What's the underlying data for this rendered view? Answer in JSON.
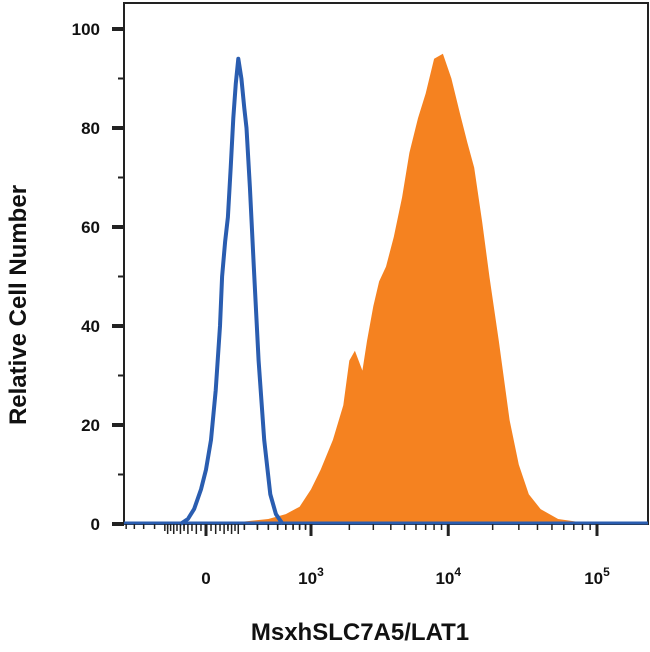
{
  "chart_data": {
    "type": "area",
    "xlabel": "MsxhSLC7A5/LAT1",
    "ylabel": "Relative Cell Number",
    "ylim": [
      0,
      100
    ],
    "y_ticks": [
      "0",
      "20",
      "40",
      "60",
      "80",
      "100"
    ],
    "x_ticks": [
      {
        "value": 0,
        "base": "0",
        "exp": ""
      },
      {
        "value": 1000,
        "base": "10",
        "exp": "3"
      },
      {
        "value": 10000,
        "base": "10",
        "exp": "4"
      },
      {
        "value": 100000,
        "base": "10",
        "exp": "5"
      }
    ],
    "x_scale": "biexponential",
    "grid": false,
    "series": [
      {
        "style": "outline",
        "color": "#2a5db0",
        "points": [
          [
            -120,
            0
          ],
          [
            -80,
            1
          ],
          [
            -50,
            3
          ],
          [
            -20,
            7
          ],
          [
            0,
            11
          ],
          [
            20,
            17
          ],
          [
            40,
            27
          ],
          [
            60,
            40
          ],
          [
            70,
            50
          ],
          [
            85,
            57
          ],
          [
            100,
            62
          ],
          [
            115,
            72
          ],
          [
            130,
            82
          ],
          [
            145,
            89
          ],
          [
            160,
            94
          ],
          [
            180,
            90
          ],
          [
            200,
            84
          ],
          [
            215,
            80
          ],
          [
            240,
            68
          ],
          [
            270,
            52
          ],
          [
            310,
            33
          ],
          [
            360,
            17
          ],
          [
            420,
            6
          ],
          [
            480,
            2
          ],
          [
            560,
            0
          ]
        ]
      },
      {
        "style": "filled",
        "color": "#f58220",
        "points": [
          [
            -200,
            0
          ],
          [
            0,
            0.2
          ],
          [
            200,
            0.5
          ],
          [
            400,
            1
          ],
          [
            600,
            2
          ],
          [
            800,
            3.5
          ],
          [
            1000,
            7
          ],
          [
            1200,
            11
          ],
          [
            1500,
            17
          ],
          [
            1800,
            24
          ],
          [
            2000,
            33
          ],
          [
            2200,
            35
          ],
          [
            2500,
            31
          ],
          [
            2700,
            37
          ],
          [
            3000,
            44
          ],
          [
            3300,
            49
          ],
          [
            3700,
            52
          ],
          [
            4200,
            58
          ],
          [
            4800,
            66
          ],
          [
            5400,
            75
          ],
          [
            6200,
            82
          ],
          [
            7000,
            87
          ],
          [
            8000,
            94
          ],
          [
            9200,
            95
          ],
          [
            10500,
            90
          ],
          [
            12000,
            83
          ],
          [
            13500,
            77
          ],
          [
            15000,
            72
          ],
          [
            17000,
            61
          ],
          [
            19000,
            50
          ],
          [
            22000,
            37
          ],
          [
            26000,
            21
          ],
          [
            30000,
            12
          ],
          [
            35000,
            6
          ],
          [
            42000,
            3
          ],
          [
            55000,
            1
          ],
          [
            80000,
            0.3
          ],
          [
            100000,
            0
          ]
        ]
      }
    ]
  }
}
